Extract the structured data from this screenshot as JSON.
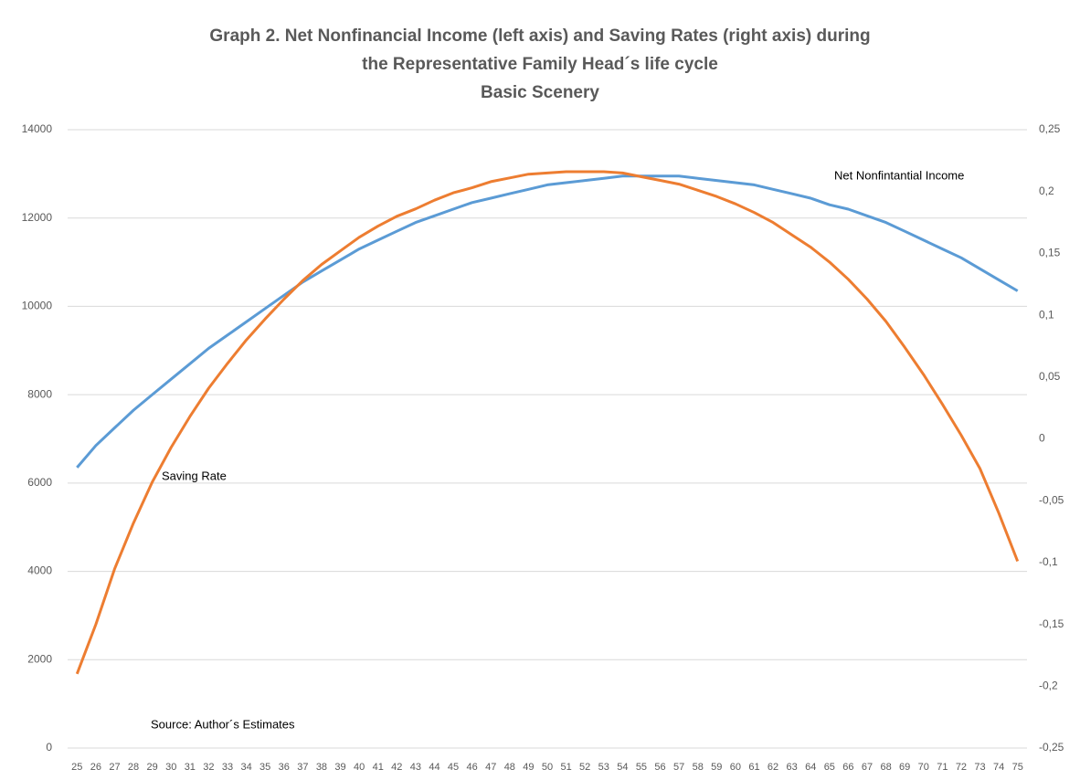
{
  "chart_data": {
    "type": "line",
    "title": [
      "Graph 2. Net Nonfinancial  Income (left axis) and Saving Rates (right axis)  during",
      "the Representative Family Head´s life cycle",
      "Basic Scenery"
    ],
    "annotations": [
      "Net Nonfintantial Income",
      "Saving Rate",
      "Source: Author´s Estimates"
    ],
    "categories": [
      25,
      26,
      27,
      28,
      29,
      30,
      31,
      32,
      33,
      34,
      35,
      36,
      37,
      38,
      39,
      40,
      41,
      42,
      43,
      44,
      45,
      46,
      47,
      48,
      49,
      50,
      51,
      52,
      53,
      54,
      55,
      56,
      57,
      58,
      59,
      60,
      61,
      62,
      63,
      64,
      65,
      66,
      67,
      68,
      69,
      70,
      71,
      72,
      73,
      74,
      75
    ],
    "series": [
      {
        "name": "Net Nonfinantial Income",
        "color": "#5b9bd5",
        "axis": "y",
        "values": [
          6350,
          6850,
          7250,
          7650,
          8000,
          8350,
          8700,
          9050,
          9350,
          9650,
          9950,
          10250,
          10550,
          10800,
          11050,
          11300,
          11500,
          11700,
          11900,
          12050,
          12200,
          12350,
          12450,
          12550,
          12650,
          12750,
          12800,
          12850,
          12900,
          12950,
          12950,
          12950,
          12950,
          12900,
          12850,
          12800,
          12750,
          12650,
          12550,
          12450,
          12300,
          12200,
          12050,
          11900,
          11700,
          11500,
          11300,
          11100,
          10850,
          10600,
          10350
        ]
      },
      {
        "name": "Saving Rate",
        "color": "#ed7d31",
        "axis": "y2",
        "values": [
          -0.19,
          -0.15,
          -0.105,
          -0.068,
          -0.035,
          -0.007,
          0.018,
          0.041,
          0.061,
          0.08,
          0.097,
          0.113,
          0.128,
          0.141,
          0.152,
          0.163,
          0.172,
          0.18,
          0.186,
          0.193,
          0.199,
          0.203,
          0.208,
          0.211,
          0.214,
          0.215,
          0.216,
          0.216,
          0.216,
          0.215,
          0.212,
          0.209,
          0.206,
          0.201,
          0.196,
          0.19,
          0.183,
          0.175,
          0.165,
          0.155,
          0.143,
          0.129,
          0.113,
          0.095,
          0.074,
          0.052,
          0.028,
          0.003,
          -0.024,
          -0.06,
          -0.099
        ]
      }
    ],
    "ylim": [
      0,
      14000
    ],
    "yticks": [
      0,
      2000,
      4000,
      6000,
      8000,
      10000,
      12000,
      14000
    ],
    "y2lim": [
      -0.25,
      0.25
    ],
    "y2ticks": [
      {
        "value": -0.25,
        "label": "-0,25"
      },
      {
        "value": -0.2,
        "label": "-0,2"
      },
      {
        "value": -0.15,
        "label": "-0,15"
      },
      {
        "value": -0.1,
        "label": "-0,1"
      },
      {
        "value": -0.05,
        "label": "-0,05"
      },
      0,
      {
        "value": 0.05,
        "label": "0,05"
      },
      {
        "value": 0.1,
        "label": "0,1"
      },
      {
        "value": 0.15,
        "label": "0,15"
      },
      {
        "value": 0.2,
        "label": "0,2"
      },
      {
        "value": 0.25,
        "label": "0,25"
      }
    ],
    "grid": true
  }
}
